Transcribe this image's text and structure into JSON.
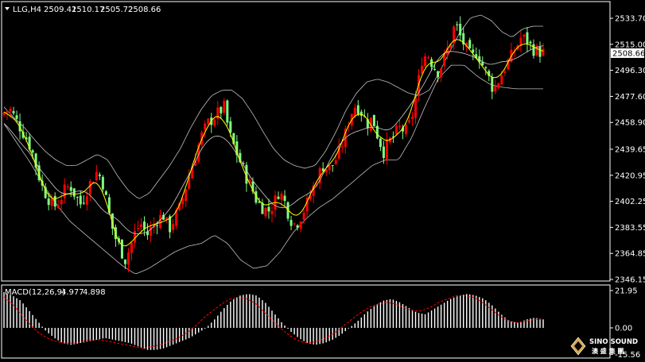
{
  "header": {
    "symbol": "LLG,H4",
    "open": "2509.41",
    "high": "2510.17",
    "low": "2505.72",
    "close": "2508.66"
  },
  "macd_header": {
    "label": "MACD(12,26,9)",
    "main": "4.977",
    "signal": "4.898"
  },
  "logo": {
    "line1": "SINO SOUND",
    "line2": "澳 盛 集 團"
  },
  "colors": {
    "background": "#000000",
    "grid": "#ffffff",
    "bull": "#ff0000",
    "bear": "#7fff7f",
    "ma": "#ffff00",
    "band": "#c0c0c0",
    "macd_hist": "#ffffff",
    "macd_signal": "#ff0000",
    "current_price_bg": "#ffffff"
  },
  "chart_data": [
    {
      "type": "candlestick",
      "name": "price",
      "ylim": [
        2346.15,
        2543.0
      ],
      "y_ticks": [
        "2533.70",
        "2515.00",
        "2496.30",
        "2477.60",
        "2458.90",
        "2439.65",
        "2420.95",
        "2402.25",
        "2383.55",
        "2364.85",
        "2346.15"
      ],
      "y_tick_values": [
        2533.7,
        2515.0,
        2496.3,
        2477.6,
        2458.9,
        2439.65,
        2420.95,
        2402.25,
        2383.55,
        2364.85,
        2346.15
      ],
      "current_price": "2508.66",
      "current_price_value": 2508.66,
      "close_path": [
        2466,
        2469,
        2462,
        2455,
        2448,
        2440,
        2425,
        2412,
        2405,
        2398,
        2402,
        2410,
        2414,
        2406,
        2400,
        2410,
        2418,
        2424,
        2415,
        2395,
        2378,
        2370,
        2360,
        2370,
        2382,
        2386,
        2378,
        2384,
        2390,
        2392,
        2382,
        2390,
        2398,
        2412,
        2425,
        2438,
        2450,
        2458,
        2462,
        2466,
        2470,
        2450,
        2440,
        2430,
        2420,
        2412,
        2402,
        2398,
        2395,
        2400,
        2410,
        2402,
        2390,
        2385,
        2392,
        2400,
        2410,
        2420,
        2428,
        2425,
        2430,
        2438,
        2450,
        2465,
        2472,
        2466,
        2458,
        2462,
        2448,
        2438,
        2445,
        2450,
        2455,
        2452,
        2460,
        2480,
        2505,
        2508,
        2500,
        2495,
        2505,
        2515,
        2530,
        2520,
        2512,
        2505,
        2510,
        2500,
        2492,
        2482,
        2490,
        2498,
        2505,
        2512,
        2520,
        2518,
        2512,
        2510,
        2509
      ],
      "ma": [
        2472,
        2468,
        2462,
        2452,
        2442,
        2432,
        2420,
        2412,
        2407,
        2405,
        2406,
        2410,
        2412,
        2408,
        2402,
        2398,
        2396,
        2385,
        2376,
        2372,
        2378,
        2381,
        2383,
        2385,
        2388,
        2396,
        2406,
        2420,
        2436,
        2448,
        2455,
        2447,
        2435,
        2425,
        2415,
        2408,
        2405,
        2402,
        2400,
        2398,
        2402,
        2408,
        2415,
        2422,
        2430,
        2440,
        2452,
        2460,
        2464,
        2460,
        2455,
        2452,
        2456,
        2460,
        2470,
        2480,
        2490,
        2498,
        2505,
        2508,
        2510,
        2508,
        2505,
        2500,
        2498,
        2500,
        2503,
        2506,
        2508,
        2509
      ],
      "bb_upper": [
        2470,
        2462,
        2455,
        2446,
        2438,
        2432,
        2428,
        2428,
        2432,
        2436,
        2432,
        2420,
        2410,
        2404,
        2408,
        2418,
        2428,
        2440,
        2455,
        2468,
        2478,
        2482,
        2482,
        2476,
        2465,
        2452,
        2440,
        2432,
        2428,
        2426,
        2428,
        2438,
        2452,
        2468,
        2480,
        2488,
        2490,
        2488,
        2484,
        2480,
        2478,
        2482,
        2495,
        2510,
        2524,
        2534,
        2536,
        2532,
        2524,
        2520,
        2526,
        2528,
        2528
      ],
      "bb_lower": [
        2458,
        2444,
        2430,
        2414,
        2400,
        2388,
        2380,
        2372,
        2364,
        2356,
        2350,
        2354,
        2360,
        2366,
        2370,
        2372,
        2378,
        2372,
        2360,
        2354,
        2356,
        2366,
        2380,
        2390,
        2398,
        2404,
        2412,
        2420,
        2428,
        2432,
        2432,
        2448,
        2470,
        2490,
        2500,
        2500,
        2492,
        2486,
        2484,
        2483,
        2483,
        2483
      ]
    },
    {
      "type": "macd",
      "name": "MACD(12,26,9)",
      "ylim": [
        -15.56,
        21.95
      ],
      "y_ticks": [
        "21.95",
        "0.00",
        "-15.56"
      ],
      "y_tick_values": [
        21.95,
        0.0,
        -15.56
      ],
      "histogram": [
        21,
        19,
        16,
        10,
        4,
        -2,
        -6,
        -9,
        -10,
        -9,
        -8,
        -7,
        -6,
        -7,
        -8,
        -9,
        -11,
        -13,
        -13,
        -12,
        -10,
        -8,
        -6,
        -3,
        0,
        5,
        11,
        16,
        19,
        20,
        19,
        15,
        9,
        3,
        -2,
        -6,
        -9,
        -10,
        -9,
        -7,
        -4,
        0,
        4,
        9,
        13,
        16,
        17,
        15,
        12,
        9,
        8,
        11,
        14,
        17,
        19,
        20,
        19,
        17,
        13,
        8,
        4,
        3,
        5,
        6,
        5
      ],
      "signal": [
        18,
        14,
        8,
        2,
        -3,
        -6,
        -8,
        -9,
        -9,
        -8,
        -7,
        -7,
        -8,
        -9,
        -10,
        -11,
        -12,
        -11,
        -10,
        -8,
        -6,
        -3,
        1,
        6,
        10,
        14,
        17,
        18,
        17,
        14,
        9,
        4,
        -1,
        -5,
        -8,
        -9,
        -8,
        -6,
        -3,
        1,
        5,
        9,
        12,
        14,
        15,
        14,
        12,
        10,
        10,
        12,
        15,
        17,
        19,
        19,
        18,
        15,
        11,
        7,
        4,
        3,
        4,
        5,
        5
      ]
    }
  ]
}
